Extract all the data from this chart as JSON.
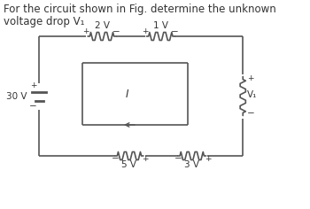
{
  "title_line1": "For the circuit shown in Fig. determine the unknown",
  "title_line2": "voltage drop V₁",
  "bg_color": "#ffffff",
  "text_color": "#333333",
  "line_color": "#555555",
  "title_fontsize": 8.5,
  "circuit_fontsize": 7.5,
  "small_fontsize": 6.5,
  "source_label": "30 V",
  "r1_label": "2 V",
  "r2_label": "1 V",
  "r3_label": "5 V",
  "r4_label": "3 V",
  "r5_label": "V₁",
  "current_label": "I"
}
